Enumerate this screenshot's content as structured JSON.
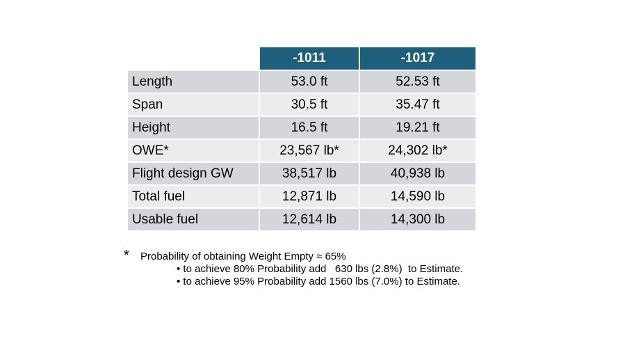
{
  "table": {
    "columns": [
      "-1011",
      "-1017"
    ],
    "rows": [
      {
        "label": "Length",
        "a": "53.0 ft",
        "b": "52.53 ft"
      },
      {
        "label": "Span",
        "a": "30.5 ft",
        "b": "35.47 ft"
      },
      {
        "label": "Height",
        "a": "16.5 ft",
        "b": "19.21 ft"
      },
      {
        "label": "OWE*",
        "a": "23,567 lb*",
        "b": "24,302 lb*"
      },
      {
        "label": "Flight design GW",
        "a": "38,517 lb",
        "b": "40,938 lb"
      },
      {
        "label": "Total fuel",
        "a": "12,871 lb",
        "b": "14,590 lb"
      },
      {
        "label": "Usable fuel",
        "a": "12,614 lb",
        "b": "14,300 lb"
      }
    ]
  },
  "footnote": {
    "star": "*",
    "main": "Probability of obtaining Weight Empty ≈ 65%",
    "bullets": [
      "• to achieve 80% Probability add   630 lbs (2.8%)  to Estimate.",
      "• to achieve 95% Probability add 1560 lbs (7.0%) to Estimate."
    ]
  },
  "colors": {
    "header": "#1f5f7e",
    "row_dark": "#d5d6db",
    "row_light": "#ebecee"
  }
}
